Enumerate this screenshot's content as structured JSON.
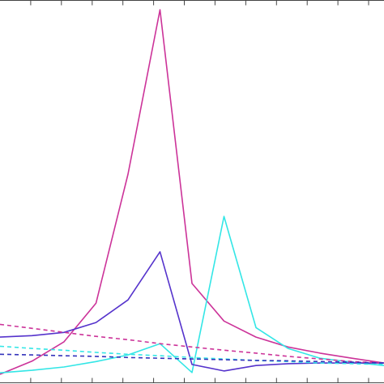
{
  "chart_data": {
    "type": "line",
    "x": [
      0,
      1,
      2,
      3,
      4,
      5,
      6,
      7,
      8,
      9,
      10,
      11,
      12
    ],
    "xlim": [
      0,
      12
    ],
    "ylim": [
      0,
      100
    ],
    "grid": false,
    "series": [
      {
        "color": "#cc3399",
        "dash": false,
        "values": [
          0,
          3.6,
          8.9,
          19.5,
          54.9,
          100,
          24.9,
          14.6,
          10.2,
          7.5,
          5.8,
          4.4,
          3.1
        ]
      },
      {
        "color": "#33e6e6",
        "dash": false,
        "values": [
          0.4,
          1.1,
          2.0,
          3.5,
          5.3,
          8.4,
          0.5,
          43.3,
          12.8,
          7.1,
          4.4,
          3.3,
          2.4
        ]
      },
      {
        "color": "#5533cc",
        "dash": false,
        "values": [
          10.2,
          10.6,
          11.5,
          14.2,
          20.4,
          33.6,
          2.7,
          0.9,
          2.4,
          2.9,
          3.1,
          3.1,
          3.1
        ]
      },
      {
        "color": "#cc3399",
        "dash": true,
        "values": [
          13.7,
          12.6,
          11.5,
          10.4,
          9.5,
          8.4,
          7.5,
          6.6,
          5.8,
          4.9,
          4.2,
          3.5,
          3.1
        ]
      },
      {
        "color": "#33e6e6",
        "dash": true,
        "values": [
          7.7,
          7.1,
          6.6,
          6.0,
          5.5,
          5.1,
          4.6,
          4.2,
          3.8,
          3.5,
          3.1,
          2.9,
          2.7
        ]
      },
      {
        "color": "#3333bb",
        "dash": true,
        "values": [
          5.5,
          5.3,
          5.1,
          4.9,
          4.6,
          4.4,
          4.2,
          4.0,
          3.8,
          3.7,
          3.5,
          3.3,
          3.1
        ]
      }
    ]
  }
}
